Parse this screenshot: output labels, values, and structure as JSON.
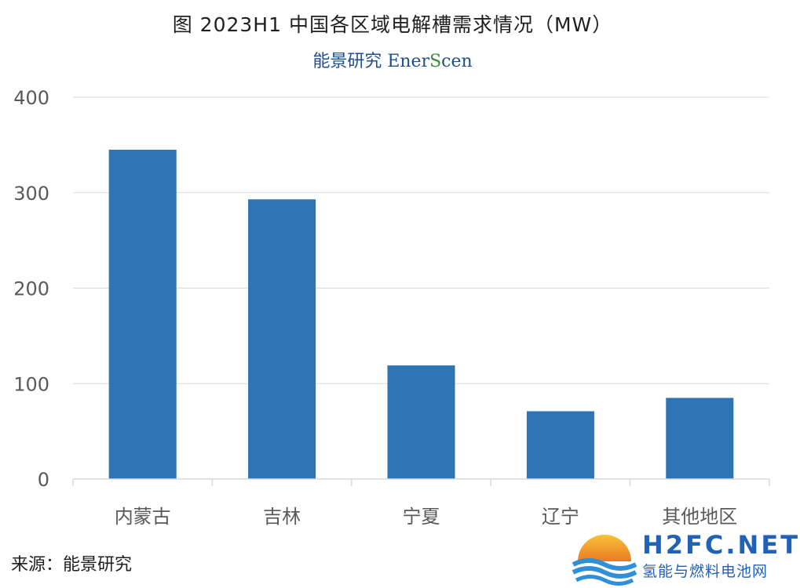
{
  "title": "图  2023H1 中国各区域电解槽需求情况（MW）",
  "brand": {
    "cn": "能景研究",
    "en_pre": "Ener",
    "en_s": "S",
    "en_post": "cen"
  },
  "source": "来源：能景研究",
  "watermark": {
    "main": "H2FC.NET",
    "sub": "氢能与燃料电池网"
  },
  "colors": {
    "bar": "#2f74b5",
    "grid": "#d9d9d9",
    "axis_text": "#595959"
  },
  "chart_data": {
    "type": "bar",
    "title": "图  2023H1 中国各区域电解槽需求情况（MW）",
    "categories": [
      "内蒙古",
      "吉林",
      "宁夏",
      "辽宁",
      "其他地区"
    ],
    "values": [
      345,
      293,
      119,
      71,
      85
    ],
    "ylim": [
      0,
      400
    ],
    "yticks": [
      0,
      100,
      200,
      300,
      400
    ],
    "xlabel": "",
    "ylabel": "",
    "grid": true,
    "legend": "none"
  }
}
